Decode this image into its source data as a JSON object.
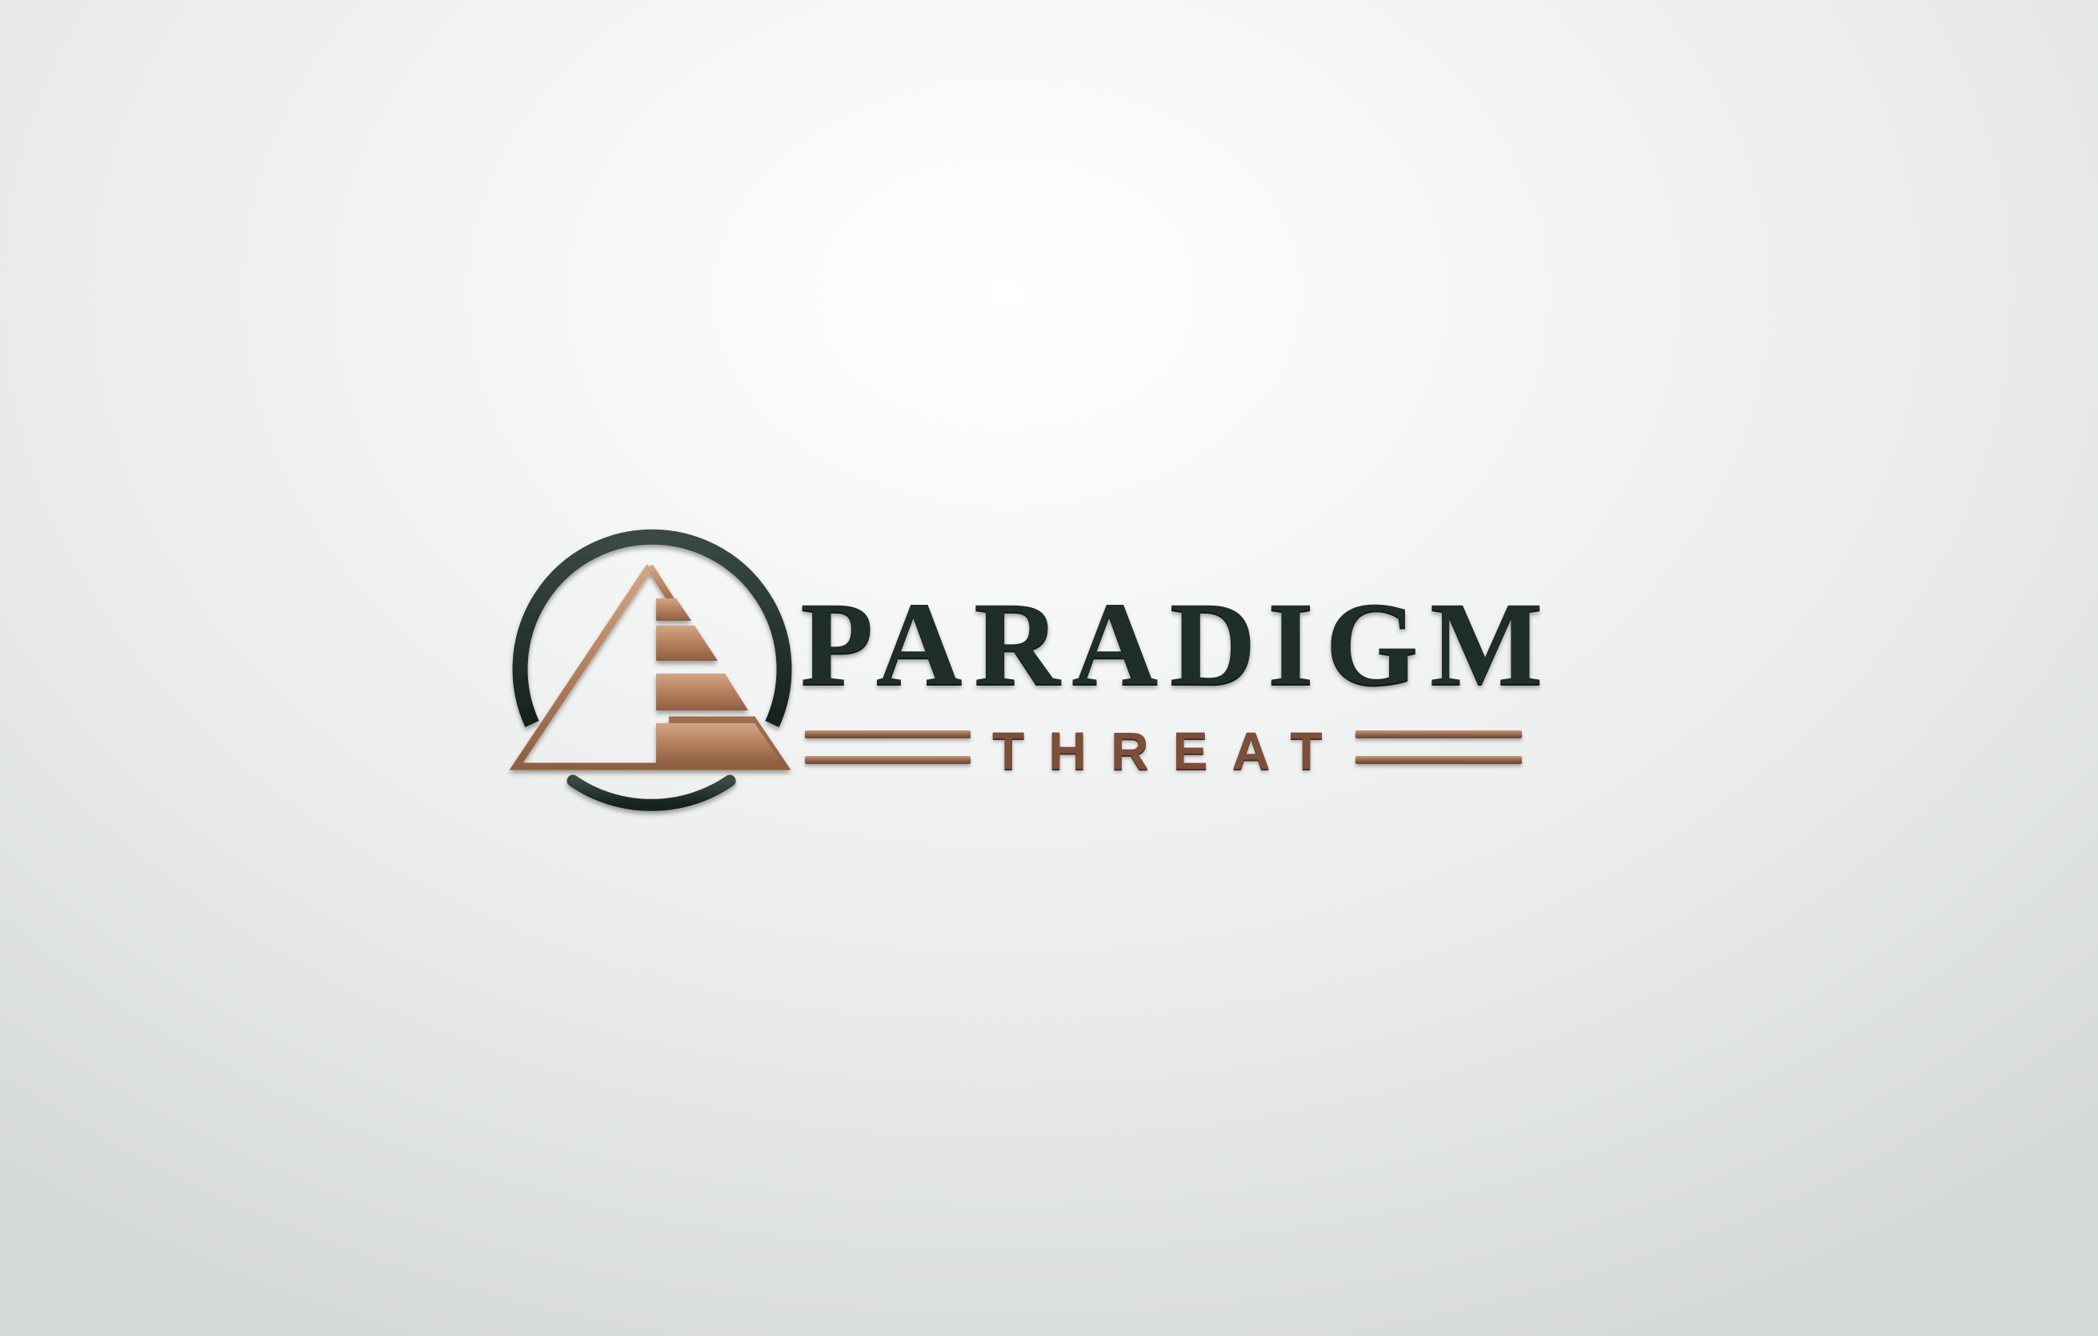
{
  "logo": {
    "name": "PARADIGM",
    "tagline": "THREAT",
    "colors": {
      "dark": "#1f2e28",
      "copper": "#b58361",
      "copper_dark": "#7c4f3b",
      "background": "#eef0f0"
    }
  }
}
